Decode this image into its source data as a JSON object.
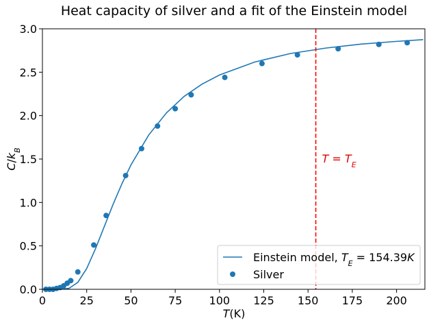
{
  "chart_data": {
    "type": "scatter-fit",
    "title": "Heat capacity of silver and a fit of the Einstein model",
    "xlabel": [
      {
        "t": "T",
        "style": "i"
      },
      {
        "t": "(K)",
        "style": "n"
      }
    ],
    "ylabel": [
      {
        "t": "C",
        "style": "i"
      },
      {
        "t": "/",
        "style": "n"
      },
      {
        "t": "k",
        "style": "i"
      },
      {
        "t": "B",
        "style": "sub"
      }
    ],
    "xlim": [
      0,
      216
    ],
    "ylim": [
      0,
      3.0
    ],
    "xticks": [
      0,
      25,
      50,
      75,
      100,
      125,
      150,
      175,
      200
    ],
    "yticks": [
      {
        "value": 0,
        "label": "0.0"
      },
      {
        "value": 0.5,
        "label": "0.5"
      },
      {
        "value": 1,
        "label": "1.0"
      },
      {
        "value": 1.5,
        "label": "1.5"
      },
      {
        "value": 2,
        "label": "2.0"
      },
      {
        "value": 2.5,
        "label": "2.5"
      },
      {
        "value": 3,
        "label": "3.0"
      }
    ],
    "legend": "lower right",
    "series": [
      {
        "kind": "line",
        "color": "#1f77b4",
        "name": [
          {
            "t": "Einstein model, ",
            "style": "n"
          },
          {
            "t": "T",
            "style": "i"
          },
          {
            "t": "E",
            "style": "sub"
          },
          {
            "t": " = 154.39",
            "style": "n"
          },
          {
            "t": "K",
            "style": "i"
          }
        ],
        "x": [
          0,
          5,
          10,
          15,
          20,
          25,
          30,
          35,
          40,
          45,
          50,
          60,
          70,
          80,
          90,
          100,
          120,
          140,
          160,
          180,
          200,
          215
        ],
        "values": [
          0,
          0,
          0.0001,
          0.011,
          0.08,
          0.239,
          0.468,
          0.726,
          0.983,
          1.22,
          1.432,
          1.776,
          2.031,
          2.221,
          2.361,
          2.468,
          2.618,
          2.715,
          2.778,
          2.824,
          2.855,
          2.875
        ]
      },
      {
        "kind": "scatter",
        "color": "#1f77b4",
        "name": [
          {
            "t": "Silver",
            "style": "n"
          }
        ],
        "x": [
          2,
          4,
          6,
          8,
          10,
          12,
          14,
          16,
          20,
          29,
          36,
          47,
          56,
          65,
          75,
          84,
          103,
          124,
          144,
          167,
          190,
          206
        ],
        "values": [
          0,
          0,
          0,
          0.01,
          0.02,
          0.04,
          0.07,
          0.1,
          0.2,
          0.51,
          0.85,
          1.31,
          1.62,
          1.88,
          2.08,
          2.24,
          2.44,
          2.6,
          2.7,
          2.77,
          2.82,
          2.84
        ]
      }
    ],
    "vline": {
      "x": 154.39,
      "color": "red"
    },
    "annotation": {
      "text": [
        {
          "t": "T",
          "style": "i"
        },
        {
          "t": " = ",
          "style": "n"
        },
        {
          "t": "T",
          "style": "i"
        },
        {
          "t": "E",
          "style": "sub"
        }
      ],
      "color": "#e00000"
    }
  }
}
